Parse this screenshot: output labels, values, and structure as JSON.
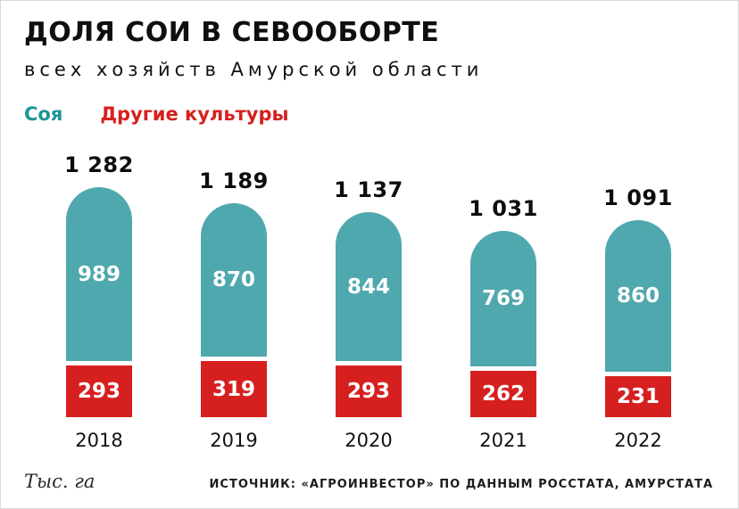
{
  "title": "ДОЛЯ СОИ В СЕВООБОРТЕ",
  "subtitle": "всех хозяйств Амурской области",
  "legend": {
    "soy_label": "Соя",
    "other_label": "Другие культуры"
  },
  "colors": {
    "soy": "#4fa8ad",
    "other": "#d6201f",
    "soy_text": "#1d9598"
  },
  "footer": {
    "unit": "Тыс. га",
    "source": "ИСТОЧНИК: «АГРОИНВЕСТОР» ПО ДАННЫМ РОССТАТА, АМУРСТАТА"
  },
  "chart_data": {
    "type": "bar",
    "stacked": true,
    "categories": [
      "2018",
      "2019",
      "2020",
      "2021",
      "2022"
    ],
    "series": [
      {
        "name": "Соя",
        "color": "#4fa8ad",
        "values": [
          989,
          870,
          844,
          769,
          860
        ]
      },
      {
        "name": "Другие культуры",
        "color": "#d6201f",
        "values": [
          293,
          319,
          293,
          262,
          231
        ]
      }
    ],
    "totals": [
      1282,
      1189,
      1137,
      1031,
      1091
    ],
    "totals_labels": [
      "1 282",
      "1 189",
      "1 137",
      "1 031",
      "1 091"
    ],
    "title": "ДОЛЯ СОИ В СЕВООБОРТЕ",
    "xlabel": "",
    "ylabel": "Тыс. га",
    "ylim": [
      0,
      1282
    ],
    "grid": false,
    "legend_position": "top-left"
  }
}
